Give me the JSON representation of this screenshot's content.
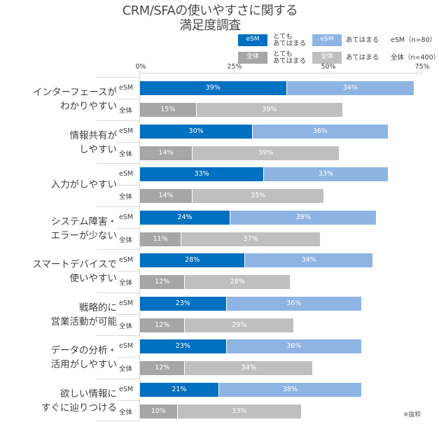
{
  "chart_data": {
    "type": "bar",
    "orientation": "horizontal",
    "stacked": true,
    "title": "CRM/SFAの使いやすさに関する満足度調査",
    "title_lines": [
      "CRM/SFAの使いやすさに関する",
      "満足度調査"
    ],
    "xlabel": "",
    "ylabel": "",
    "xlim": [
      0,
      75
    ],
    "x_ticks": [
      "0%",
      "25%",
      "50%",
      "75%"
    ],
    "grid": false,
    "legend_position": "top-right",
    "legend": [
      {
        "swatch": "eSM",
        "label": "とても\nあてはまる",
        "color": "#0070c0"
      },
      {
        "swatch": "eSM",
        "label": "あてはまる",
        "color": "#8eb4e3"
      },
      {
        "swatch": "全体",
        "label": "とても\nあてはまる",
        "color": "#a6a6a6"
      },
      {
        "swatch": "全体",
        "label": "あてはまる",
        "color": "#bfbfbf"
      }
    ],
    "sample_sizes": [
      {
        "label": "eSM（n=80）"
      },
      {
        "label": "全体（n=400）"
      }
    ],
    "categories": [
      "インターフェースがわかりやすい",
      "情報共有がしやすい",
      "入力がしやすい",
      "システム障害・エラーが少ない",
      "スマートデバイスで使いやすい",
      "戦略的に営業活動が可能",
      "データの分析・活用がしやすい",
      "欲しい情報にすぐに辿りつける"
    ],
    "series": [
      {
        "name": "eSM とてもあてはまる",
        "values": [
          39,
          30,
          33,
          24,
          28,
          23,
          23,
          21
        ]
      },
      {
        "name": "eSM あてはまる",
        "values": [
          34,
          36,
          33,
          39,
          34,
          36,
          36,
          38
        ]
      },
      {
        "name": "全体 とてもあてはまる",
        "values": [
          15,
          14,
          14,
          11,
          12,
          12,
          12,
          10
        ]
      },
      {
        "name": "全体 あてはまる",
        "values": [
          39,
          39,
          35,
          37,
          28,
          29,
          34,
          33
        ]
      }
    ],
    "footnote": "※抜粋"
  },
  "title": {
    "line1": "CRM/SFAの使いやすさに関する",
    "line2": "満足度調査"
  },
  "legend": {
    "esm_strong": {
      "swatch": "eSM",
      "line1": "とても",
      "line2": "あてはまる"
    },
    "esm_mild": {
      "swatch": "eSM",
      "text": "あてはまる"
    },
    "all_strong": {
      "swatch": "全体",
      "line1": "とても",
      "line2": "あてはまる"
    },
    "all_mild": {
      "swatch": "全体",
      "text": "あてはまる"
    },
    "n_esm": "eSM（n=80）",
    "n_all": "全体（n=400）"
  },
  "axis": {
    "ticks": [
      "0%",
      "25%",
      "50%",
      "75%"
    ]
  },
  "series_labels": {
    "esm": "eSM",
    "all": "全体"
  },
  "groups": [
    {
      "line1": "インターフェースが",
      "line2": "わかりやすい",
      "esm": [
        "39%",
        "34%"
      ],
      "all": [
        "15%",
        "39%"
      ]
    },
    {
      "line1": "情報共有が",
      "line2": "しやすい",
      "esm": [
        "30%",
        "36%"
      ],
      "all": [
        "14%",
        "39%"
      ]
    },
    {
      "line1": "入力がしやすい",
      "line2": "",
      "esm": [
        "33%",
        "33%"
      ],
      "all": [
        "14%",
        "35%"
      ]
    },
    {
      "line1": "システム障害・",
      "line2": "エラーが少ない",
      "esm": [
        "24%",
        "39%"
      ],
      "all": [
        "11%",
        "37%"
      ]
    },
    {
      "line1": "スマートデバイスで",
      "line2": "使いやすい",
      "esm": [
        "28%",
        "34%"
      ],
      "all": [
        "12%",
        "28%"
      ]
    },
    {
      "line1": "戦略的に",
      "line2": "営業活動が可能",
      "esm": [
        "23%",
        "36%"
      ],
      "all": [
        "12%",
        "29%"
      ]
    },
    {
      "line1": "データの分析・",
      "line2": "活用がしやすい",
      "esm": [
        "23%",
        "36%"
      ],
      "all": [
        "12%",
        "34%"
      ]
    },
    {
      "line1": "欲しい情報に",
      "line2": "すぐに辿りつける",
      "esm": [
        "21%",
        "38%"
      ],
      "all": [
        "10%",
        "33%"
      ]
    }
  ],
  "footnote": "※抜粋"
}
